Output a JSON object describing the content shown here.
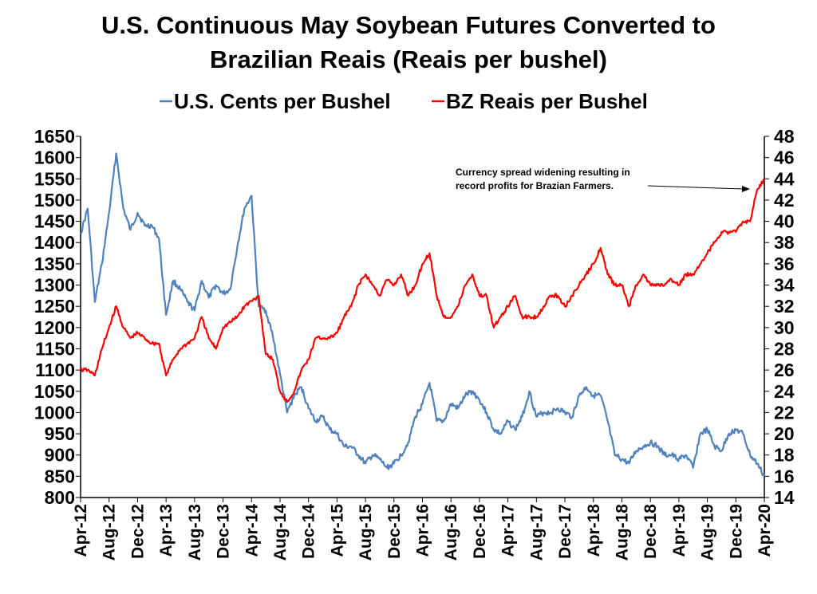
{
  "chart_data": {
    "type": "line",
    "title_line1": "U.S. Continuous May Soybean Futures Converted to",
    "title_line2": "Brazilian Reais (Reais per bushel)",
    "legend_position": "top",
    "grid": false,
    "x_ticks": [
      "Apr-12",
      "Aug-12",
      "Dec-12",
      "Apr-13",
      "Aug-13",
      "Dec-13",
      "Apr-14",
      "Aug-14",
      "Dec-14",
      "Apr-15",
      "Aug-15",
      "Dec-15",
      "Apr-16",
      "Aug-16",
      "Dec-16",
      "Apr-17",
      "Aug-17",
      "Dec-17",
      "Apr-18",
      "Aug-18",
      "Dec-18",
      "Apr-19",
      "Aug-19",
      "Dec-19",
      "Apr-20"
    ],
    "y_left": {
      "min": 800,
      "max": 1650,
      "step": 50
    },
    "y_right": {
      "min": 14,
      "max": 48,
      "step": 2
    },
    "annotation": {
      "line1": "Currency spread widening resulting in",
      "line2": "record profits for Brazian Farmers."
    },
    "series": [
      {
        "name": "U.S. Cents per Bushel",
        "axis": "left",
        "color": "#4f81bd",
        "x": [
          "2012-04",
          "2012-05",
          "2012-06",
          "2012-07",
          "2012-08",
          "2012-09",
          "2012-10",
          "2012-11",
          "2012-12",
          "2013-01",
          "2013-02",
          "2013-03",
          "2013-04",
          "2013-05",
          "2013-06",
          "2013-07",
          "2013-08",
          "2013-09",
          "2013-10",
          "2013-11",
          "2013-12",
          "2014-01",
          "2014-02",
          "2014-03",
          "2014-04",
          "2014-05",
          "2014-06",
          "2014-07",
          "2014-08",
          "2014-09",
          "2014-10",
          "2014-11",
          "2014-12",
          "2015-01",
          "2015-02",
          "2015-03",
          "2015-04",
          "2015-05",
          "2015-06",
          "2015-07",
          "2015-08",
          "2015-09",
          "2015-10",
          "2015-11",
          "2015-12",
          "2016-01",
          "2016-02",
          "2016-03",
          "2016-04",
          "2016-05",
          "2016-06",
          "2016-07",
          "2016-08",
          "2016-09",
          "2016-10",
          "2016-11",
          "2016-12",
          "2017-01",
          "2017-02",
          "2017-03",
          "2017-04",
          "2017-05",
          "2017-06",
          "2017-07",
          "2017-08",
          "2017-09",
          "2017-10",
          "2017-11",
          "2017-12",
          "2018-01",
          "2018-02",
          "2018-03",
          "2018-04",
          "2018-05",
          "2018-06",
          "2018-07",
          "2018-08",
          "2018-09",
          "2018-10",
          "2018-11",
          "2018-12",
          "2019-01",
          "2019-02",
          "2019-03",
          "2019-04",
          "2019-05",
          "2019-06",
          "2019-07",
          "2019-08",
          "2019-09",
          "2019-10",
          "2019-11",
          "2019-12",
          "2020-01",
          "2020-02",
          "2020-03",
          "2020-04"
        ],
        "values": [
          1420,
          1480,
          1260,
          1350,
          1470,
          1610,
          1480,
          1430,
          1470,
          1440,
          1440,
          1410,
          1230,
          1310,
          1290,
          1260,
          1240,
          1310,
          1270,
          1300,
          1280,
          1290,
          1390,
          1480,
          1510,
          1250,
          1240,
          1180,
          1090,
          1000,
          1040,
          1060,
          1010,
          980,
          990,
          960,
          950,
          920,
          920,
          900,
          880,
          900,
          890,
          870,
          880,
          900,
          930,
          990,
          1020,
          1070,
          980,
          980,
          1020,
          1010,
          1040,
          1050,
          1030,
          1000,
          960,
          950,
          980,
          960,
          990,
          1050,
          990,
          1000,
          1000,
          1010,
          1000,
          990,
          1040,
          1060,
          1040,
          1040,
          980,
          900,
          890,
          880,
          910,
          920,
          930,
          920,
          900,
          900,
          890,
          900,
          870,
          950,
          960,
          920,
          910,
          950,
          960,
          950,
          900,
          880,
          850
        ]
      },
      {
        "name": "BZ Reais per Bushel",
        "axis": "right",
        "color": "#ff0000",
        "x": [
          "2012-04",
          "2012-05",
          "2012-06",
          "2012-07",
          "2012-08",
          "2012-09",
          "2012-10",
          "2012-11",
          "2012-12",
          "2013-01",
          "2013-02",
          "2013-03",
          "2013-04",
          "2013-05",
          "2013-06",
          "2013-07",
          "2013-08",
          "2013-09",
          "2013-10",
          "2013-11",
          "2013-12",
          "2014-01",
          "2014-02",
          "2014-03",
          "2014-04",
          "2014-05",
          "2014-06",
          "2014-07",
          "2014-08",
          "2014-09",
          "2014-10",
          "2014-11",
          "2014-12",
          "2015-01",
          "2015-02",
          "2015-03",
          "2015-04",
          "2015-05",
          "2015-06",
          "2015-07",
          "2015-08",
          "2015-09",
          "2015-10",
          "2015-11",
          "2015-12",
          "2016-01",
          "2016-02",
          "2016-03",
          "2016-04",
          "2016-05",
          "2016-06",
          "2016-07",
          "2016-08",
          "2016-09",
          "2016-10",
          "2016-11",
          "2016-12",
          "2017-01",
          "2017-02",
          "2017-03",
          "2017-04",
          "2017-05",
          "2017-06",
          "2017-07",
          "2017-08",
          "2017-09",
          "2017-10",
          "2017-11",
          "2017-12",
          "2018-01",
          "2018-02",
          "2018-03",
          "2018-04",
          "2018-05",
          "2018-06",
          "2018-07",
          "2018-08",
          "2018-09",
          "2018-10",
          "2018-11",
          "2018-12",
          "2019-01",
          "2019-02",
          "2019-03",
          "2019-04",
          "2019-05",
          "2019-06",
          "2019-07",
          "2019-08",
          "2019-09",
          "2019-10",
          "2019-11",
          "2019-12",
          "2020-01",
          "2020-02",
          "2020-03",
          "2020-04"
        ],
        "values": [
          26,
          26,
          25.5,
          28,
          30,
          32,
          30,
          29,
          29.5,
          29,
          28.5,
          28.5,
          25.5,
          27,
          28,
          28.5,
          29,
          31,
          29,
          28,
          30,
          30.5,
          31,
          32,
          32.5,
          33,
          27.5,
          27,
          24,
          23,
          24,
          26,
          27,
          29,
          29,
          29,
          29.5,
          31,
          32,
          34,
          35,
          34,
          33,
          34.5,
          34,
          35,
          33,
          34,
          36,
          37,
          33,
          31,
          31,
          32,
          34,
          35,
          33,
          33,
          30,
          31,
          32,
          33,
          31,
          31,
          31,
          32,
          33,
          33,
          32,
          33,
          34,
          35,
          36,
          37.5,
          35,
          34,
          34,
          32,
          34,
          35,
          34,
          34,
          34,
          34.5,
          34,
          35,
          35,
          36,
          37,
          38,
          39,
          39,
          39,
          40,
          40,
          43,
          44
        ]
      }
    ]
  }
}
